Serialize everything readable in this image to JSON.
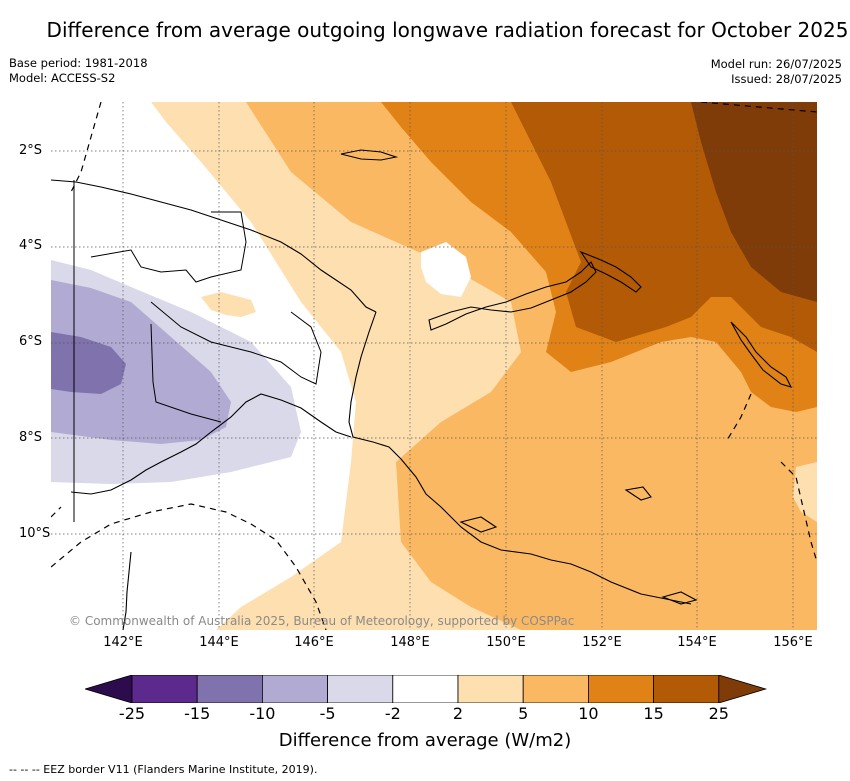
{
  "title": "Difference from average outgoing longwave radiation forecast for October 2025",
  "base_period": "Base period: 1981-2018",
  "model": "Model: ACCESS-S2",
  "model_run": "Model run: 26/07/2025",
  "issued": "Issued: 28/07/2025",
  "copyright": "© Commonwealth of Australia 2025, Bureau of Meteorology, supported by COSPPac",
  "lat_labels": [
    "2°S",
    "4°S",
    "6°S",
    "8°S",
    "10°S"
  ],
  "lon_labels": [
    "142°E",
    "144°E",
    "146°E",
    "148°E",
    "150°E",
    "152°E",
    "154°E",
    "156°E"
  ],
  "colorbar": {
    "title": "Difference from average (W/m2)",
    "ticks": [
      "-25",
      "-15",
      "-10",
      "-5",
      "-2",
      "2",
      "5",
      "10",
      "15",
      "25"
    ],
    "colors": [
      "#2d0c4e",
      "#5b2a8c",
      "#8072ac",
      "#b1abd3",
      "#d9d9ea",
      "#ffffff",
      "#fedfb0",
      "#fbb862",
      "#e08216",
      "#b35a07",
      "#7f3b08"
    ]
  },
  "footnote": "--  --  -- EEZ border V11 (Flanders Marine Institute, 2019)."
}
